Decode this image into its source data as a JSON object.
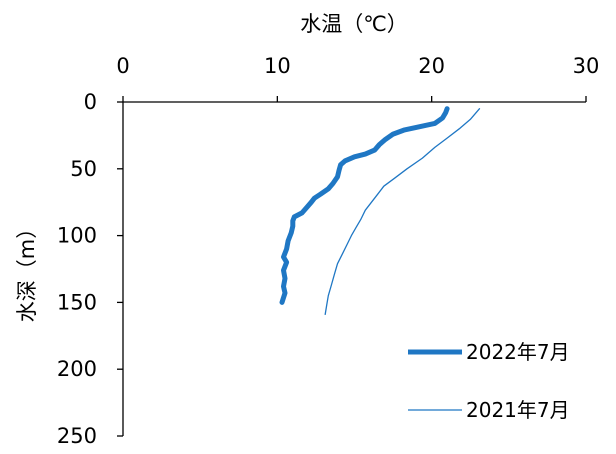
{
  "chart_data": {
    "type": "line",
    "title": "",
    "xlabel": "水温（℃）",
    "ylabel": "水深（m）",
    "xlim": [
      0,
      30
    ],
    "ylim": [
      0,
      250
    ],
    "y_inverted": true,
    "x_axis_position": "top",
    "xticks": [
      "0",
      "10",
      "20",
      "30"
    ],
    "yticks": [
      "0",
      "50",
      "100",
      "150",
      "200",
      "250"
    ],
    "grid": false,
    "legend_position": "bottom-right",
    "series": [
      {
        "name": "2022年7月",
        "color": "#1f77c4",
        "line_style": "thick",
        "points": [
          [
            21.0,
            5
          ],
          [
            20.9,
            8
          ],
          [
            20.7,
            12
          ],
          [
            20.2,
            16
          ],
          [
            19.0,
            19
          ],
          [
            18.2,
            21
          ],
          [
            17.5,
            24
          ],
          [
            17.0,
            28
          ],
          [
            16.6,
            32
          ],
          [
            16.3,
            36
          ],
          [
            15.7,
            39
          ],
          [
            15.0,
            41
          ],
          [
            14.4,
            44
          ],
          [
            14.1,
            47
          ],
          [
            14.0,
            51
          ],
          [
            13.9,
            56
          ],
          [
            13.6,
            61
          ],
          [
            13.3,
            65
          ],
          [
            12.8,
            69
          ],
          [
            12.4,
            72
          ],
          [
            12.2,
            75
          ],
          [
            11.9,
            79
          ],
          [
            11.6,
            83
          ],
          [
            11.1,
            86
          ],
          [
            11.0,
            89
          ],
          [
            11.0,
            93
          ],
          [
            10.9,
            98
          ],
          [
            10.7,
            104
          ],
          [
            10.6,
            110
          ],
          [
            10.4,
            116
          ],
          [
            10.6,
            120
          ],
          [
            10.4,
            126
          ],
          [
            10.5,
            132
          ],
          [
            10.4,
            138
          ],
          [
            10.5,
            143
          ],
          [
            10.3,
            150
          ]
        ]
      },
      {
        "name": "2021年7月",
        "color": "#1f77c4",
        "line_style": "thin",
        "points": [
          [
            23.1,
            5
          ],
          [
            22.5,
            13
          ],
          [
            21.8,
            20
          ],
          [
            21.0,
            27
          ],
          [
            20.2,
            34
          ],
          [
            19.4,
            42
          ],
          [
            18.4,
            50
          ],
          [
            17.6,
            57
          ],
          [
            16.9,
            63
          ],
          [
            16.5,
            69
          ],
          [
            16.1,
            75
          ],
          [
            15.7,
            81
          ],
          [
            15.4,
            88
          ],
          [
            15.1,
            94
          ],
          [
            14.8,
            100
          ],
          [
            14.5,
            107
          ],
          [
            14.2,
            114
          ],
          [
            13.9,
            121
          ],
          [
            13.7,
            129
          ],
          [
            13.5,
            137
          ],
          [
            13.3,
            145
          ],
          [
            13.2,
            152
          ],
          [
            13.1,
            159
          ]
        ]
      }
    ]
  }
}
